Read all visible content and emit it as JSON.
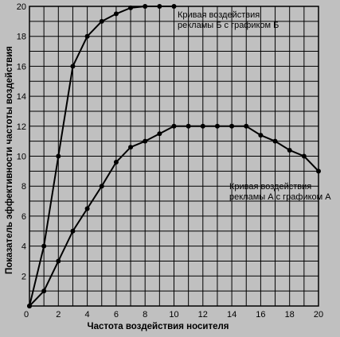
{
  "chart_data": {
    "type": "line",
    "xlabel": "Частота воздействия носителя",
    "ylabel": "Показатель эффективности частоты воздействия",
    "xlim": [
      0,
      20
    ],
    "ylim": [
      0,
      20
    ],
    "x_ticks": [
      0,
      2,
      4,
      6,
      8,
      10,
      12,
      14,
      16,
      18,
      20
    ],
    "y_ticks": [
      2,
      4,
      6,
      8,
      10,
      12,
      14,
      16,
      18,
      20
    ],
    "grid": true,
    "series": [
      {
        "label": [
          "Кривая воздействия",
          "рекламы Б с графиком Б"
        ],
        "x": [
          0,
          1,
          2,
          3,
          4,
          5,
          6,
          7,
          8,
          9,
          10
        ],
        "y": [
          0,
          4,
          10,
          16,
          18,
          19,
          19.5,
          19.9,
          20,
          20,
          20
        ],
        "color": "#000000"
      },
      {
        "label": [
          "Кривая воздействия",
          "рекламы А с графиком А"
        ],
        "x": [
          0,
          1,
          2,
          3,
          4,
          5,
          6,
          7,
          8,
          9,
          10,
          11,
          12,
          13,
          14,
          15,
          16,
          17,
          18,
          19,
          20
        ],
        "y": [
          0,
          1,
          3,
          5,
          6.5,
          8,
          9.6,
          10.6,
          11,
          11.5,
          12,
          12,
          12,
          12,
          12,
          12,
          11.4,
          11,
          10.4,
          10,
          9
        ],
        "color": "#000000"
      }
    ]
  }
}
